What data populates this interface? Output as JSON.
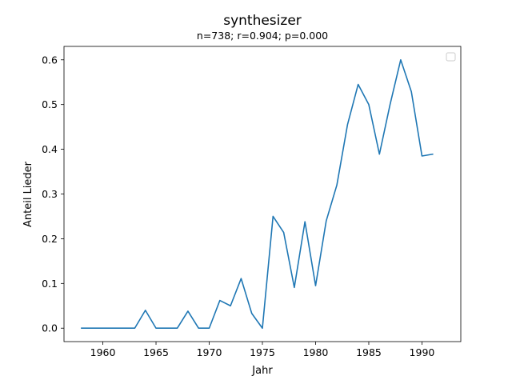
{
  "chart_data": {
    "type": "line",
    "title": "synthesizer",
    "subtitle": "n=738; r=0.904; p=0.000",
    "xlabel": "Jahr",
    "ylabel": "Anteil Lieder",
    "xlim": [
      1956.35,
      1993.65
    ],
    "ylim": [
      -0.03,
      0.63
    ],
    "xticks": [
      1960,
      1965,
      1970,
      1975,
      1980,
      1985,
      1990
    ],
    "yticks": [
      0.0,
      0.1,
      0.2,
      0.3,
      0.4,
      0.5,
      0.6
    ],
    "ytick_labels": [
      "0.0",
      "0.1",
      "0.2",
      "0.3",
      "0.4",
      "0.5",
      "0.6"
    ],
    "legend": "top-right",
    "series": [
      {
        "name": "synthesizer",
        "color": "#1f77b4",
        "x": [
          1958,
          1959,
          1960,
          1961,
          1962,
          1963,
          1964,
          1965,
          1966,
          1967,
          1968,
          1969,
          1970,
          1971,
          1972,
          1973,
          1974,
          1975,
          1976,
          1977,
          1978,
          1979,
          1980,
          1981,
          1982,
          1983,
          1984,
          1985,
          1986,
          1987,
          1988,
          1989,
          1990,
          1991
        ],
        "y": [
          0.0,
          0.0,
          0.0,
          0.0,
          0.0,
          0.0,
          0.04,
          0.0,
          0.0,
          0.0,
          0.038,
          0.0,
          0.0,
          0.062,
          0.05,
          0.111,
          0.033,
          0.0,
          0.25,
          0.214,
          0.091,
          0.238,
          0.095,
          0.24,
          0.32,
          0.455,
          0.545,
          0.5,
          0.389,
          0.5,
          0.6,
          0.529,
          0.385,
          0.389
        ]
      }
    ]
  }
}
